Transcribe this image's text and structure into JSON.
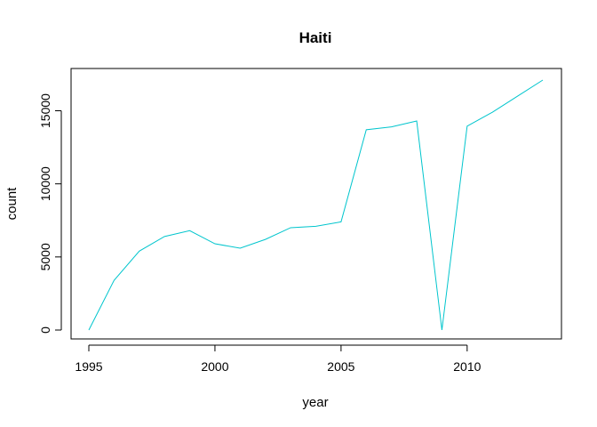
{
  "chart_data": {
    "type": "line",
    "title": "Haiti",
    "xlabel": "year",
    "ylabel": "count",
    "xlim": [
      1995,
      2013
    ],
    "ylim": [
      0,
      17100
    ],
    "x_ticks": [
      1995,
      2000,
      2005,
      2010
    ],
    "y_ticks": [
      0,
      5000,
      10000,
      15000
    ],
    "grid": false,
    "legend": "none",
    "series": [
      {
        "name": "Haiti",
        "color": "#00C5CD",
        "x": [
          1995,
          1996,
          1997,
          1998,
          1999,
          2000,
          2001,
          2002,
          2003,
          2004,
          2005,
          2006,
          2007,
          2008,
          2009,
          2010,
          2011,
          2012,
          2013
        ],
        "y": [
          0,
          3400,
          5400,
          6400,
          6800,
          5900,
          5600,
          6200,
          7000,
          7100,
          7400,
          13700,
          13900,
          14300,
          0,
          13950,
          14900,
          16000,
          17100
        ]
      }
    ]
  }
}
